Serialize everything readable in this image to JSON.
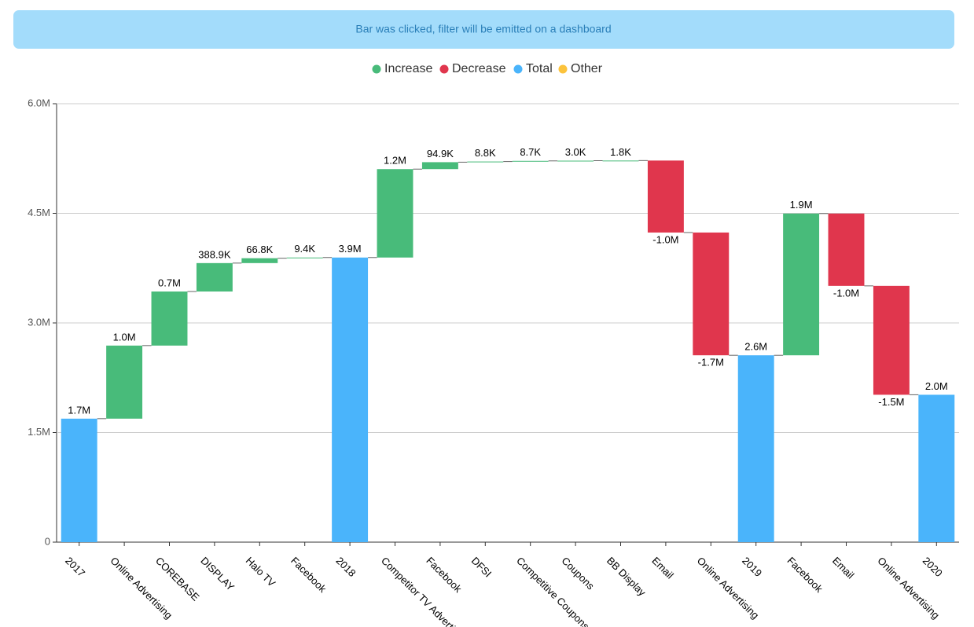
{
  "banner": "Bar was clicked, filter will be emitted on a dashboard",
  "chart_data": {
    "type": "waterfall",
    "legend": [
      {
        "name": "Increase",
        "color": "#48bb7a"
      },
      {
        "name": "Decrease",
        "color": "#e0364d"
      },
      {
        "name": "Total",
        "color": "#4ab4fb"
      },
      {
        "name": "Other",
        "color": "#fcc33c"
      }
    ],
    "categories": [
      "2017",
      "Online Advertising",
      "COREBASE",
      "DISPLAY",
      "Halo TV",
      "Facebook",
      "2018",
      "Competitor TV Advertising",
      "Facebook",
      "DFSI",
      "Competitive Coupons",
      "Coupons",
      "BB Display",
      "Email",
      "Online Advertising",
      "2019",
      "Facebook",
      "Email",
      "Online Advertising",
      "2020"
    ],
    "kinds": [
      "Total",
      "Increase",
      "Increase",
      "Increase",
      "Increase",
      "Increase",
      "Total",
      "Increase",
      "Increase",
      "Increase",
      "Increase",
      "Increase",
      "Increase",
      "Decrease",
      "Decrease",
      "Total",
      "Increase",
      "Decrease",
      "Decrease",
      "Total"
    ],
    "values": [
      1690000,
      1000000,
      740000,
      388900,
      66800,
      9400,
      3895000,
      1210000,
      94900,
      8800,
      8700,
      3000,
      1800,
      -985000,
      -1680000,
      2557000,
      1940000,
      -990000,
      -1490000,
      2017000
    ],
    "value_labels": [
      "1.7M",
      "1.0M",
      "0.7M",
      "388.9K",
      "66.8K",
      "9.4K",
      "3.9M",
      "1.2M",
      "94.9K",
      "8.8K",
      "8.7K",
      "3.0K",
      "1.8K",
      "-1.0M",
      "-1.7M",
      "2.6M",
      "1.9M",
      "-1.0M",
      "-1.5M",
      "2.0M"
    ],
    "ylim": [
      0,
      6000000
    ],
    "yticks": [
      0,
      {
        "value": 1500000,
        "label": "1.5M"
      },
      {
        "value": 3000000,
        "label": "3.0M"
      },
      {
        "value": 4500000,
        "label": "4.5M"
      },
      {
        "value": 6000000,
        "label": "6.0M"
      }
    ],
    "grid": true
  }
}
